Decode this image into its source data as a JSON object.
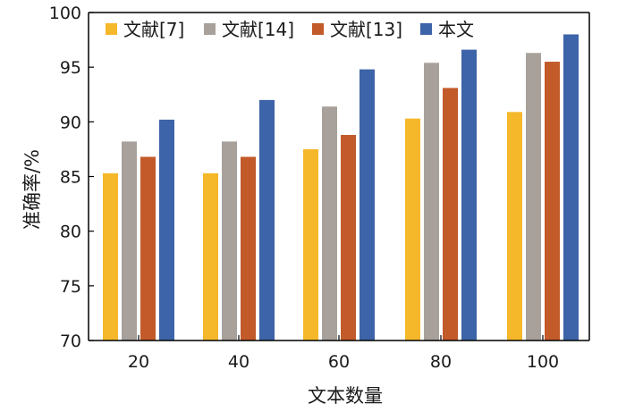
{
  "chart_data": {
    "type": "bar",
    "title": "",
    "xlabel": "文本数量",
    "ylabel": "准确率/%",
    "categories": [
      "20",
      "40",
      "60",
      "80",
      "100"
    ],
    "ylim": [
      70,
      100
    ],
    "yticks": [
      "70",
      "75",
      "80",
      "85",
      "90",
      "95",
      "100"
    ],
    "grid": false,
    "legend_position": "top-left",
    "series": [
      {
        "name": "文献[7]",
        "color": "#F5B82A",
        "values": [
          85.3,
          85.3,
          87.5,
          90.3,
          90.9
        ]
      },
      {
        "name": "文献[14]",
        "color": "#A8A19B",
        "values": [
          88.2,
          88.2,
          91.4,
          95.4,
          96.3
        ]
      },
      {
        "name": "文献[13]",
        "color": "#C25A2A",
        "values": [
          86.8,
          86.8,
          88.8,
          93.1,
          95.5
        ]
      },
      {
        "name": "本文",
        "color": "#3D64A8",
        "values": [
          90.2,
          92.0,
          94.8,
          96.6,
          98.0
        ]
      }
    ]
  }
}
